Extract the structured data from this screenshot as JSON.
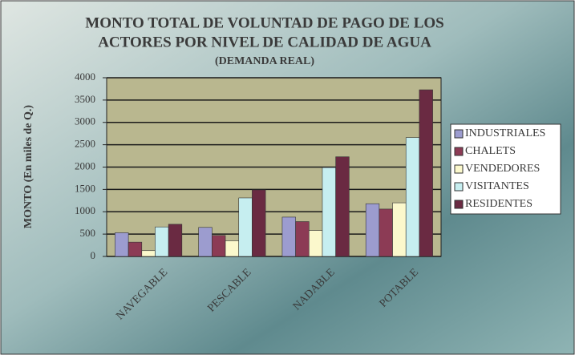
{
  "chart_data": {
    "type": "bar",
    "title": [
      "MONTO TOTAL DE VOLUNTAD DE PAGO DE LOS",
      "ACTORES POR NIVEL DE CALIDAD DE AGUA"
    ],
    "subtitle": "(DEMANDA REAL)",
    "y_label": "MONTO (En miles de Q.)",
    "categories": [
      "NAVEGABLE",
      "PESCABLE",
      "NADABLE",
      "POTABLE"
    ],
    "series": [
      {
        "name": "INDUSTRIALES",
        "color": "#9c9ccf",
        "values": [
          530,
          650,
          880,
          1180
        ]
      },
      {
        "name": "CHALETS",
        "color": "#8c3b55",
        "values": [
          320,
          470,
          780,
          1060
        ]
      },
      {
        "name": "VENDEDORES",
        "color": "#fbf8cc",
        "values": [
          130,
          350,
          580,
          1200
        ]
      },
      {
        "name": "VISITANTES",
        "color": "#c6eef0",
        "values": [
          660,
          1310,
          1990,
          2660
        ]
      },
      {
        "name": "RESIDENTES",
        "color": "#6a2a42",
        "values": [
          720,
          1490,
          2230,
          3730
        ]
      }
    ],
    "ylim": [
      0,
      4000
    ],
    "yticks": [
      0,
      500,
      1000,
      1500,
      2000,
      2500,
      3000,
      3500,
      4000
    ],
    "grid": true,
    "legend": "right"
  }
}
